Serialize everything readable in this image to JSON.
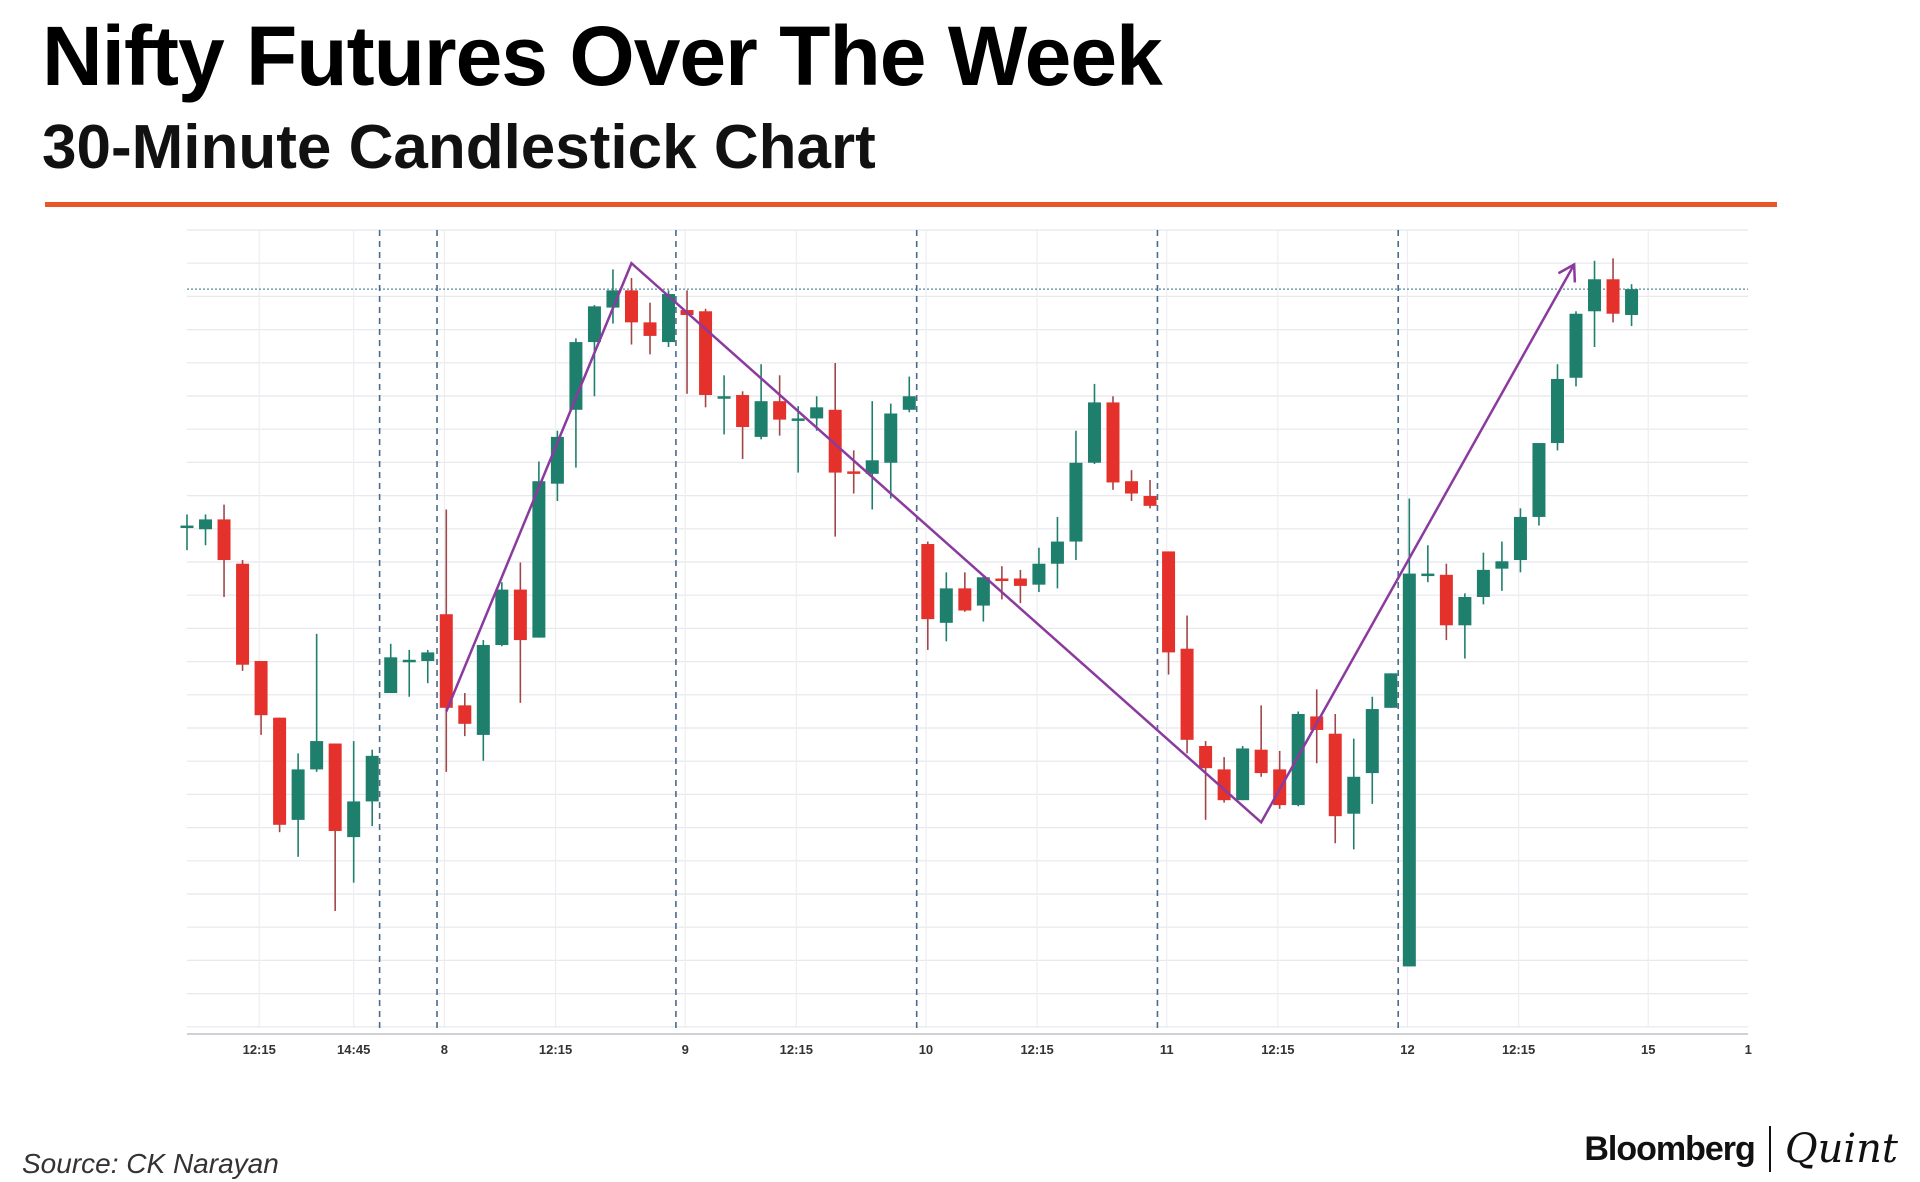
{
  "header": {
    "title": "Nifty Futures Over The Week",
    "subtitle": "30-Minute Candlestick Chart",
    "accent_color": "#E8572A"
  },
  "footer": {
    "source": "Source: CK Narayan",
    "logo_left": "Bloomberg",
    "logo_right": "Quint"
  },
  "chart_data": {
    "type": "candlestick",
    "title": "Nifty Futures Over The Week",
    "subtitle": "30-Minute Candlestick Chart",
    "interval": "30 minutes",
    "value_units": "relative price level (no y-axis labels shown)",
    "ylim": [
      0,
      648
    ],
    "grid": true,
    "colors": {
      "up": "#1F7F6D",
      "down": "#E5312B",
      "trend": "#8B3A9E",
      "separator": "#4A6A8A"
    },
    "ohlc_fields": [
      "open",
      "high",
      "low",
      "close"
    ],
    "candles": [
      [
        408,
        417,
        388,
        408
      ],
      [
        405,
        417,
        392,
        413
      ],
      [
        413,
        425,
        350,
        380
      ],
      [
        377,
        380,
        290,
        295
      ],
      [
        298,
        298,
        238,
        254
      ],
      [
        252,
        252,
        159,
        165
      ],
      [
        169,
        223,
        139,
        210
      ],
      [
        210,
        320,
        208,
        233
      ],
      [
        231,
        231,
        95,
        160
      ],
      [
        155,
        233,
        118,
        184
      ],
      [
        184,
        226,
        164,
        221
      ],
      [
        272,
        312,
        272,
        301
      ],
      [
        298,
        307,
        269,
        299
      ],
      [
        298,
        307,
        280,
        305
      ],
      [
        336,
        421,
        208,
        260
      ],
      [
        262,
        272,
        237,
        247
      ],
      [
        238,
        315,
        217,
        311
      ],
      [
        311,
        362,
        310,
        356
      ],
      [
        356,
        378,
        264,
        315
      ],
      [
        317,
        460,
        317,
        444
      ],
      [
        442,
        485,
        428,
        480
      ],
      [
        502,
        560,
        455,
        557
      ],
      [
        557,
        587,
        513,
        586
      ],
      [
        585,
        616,
        572,
        599
      ],
      [
        599,
        609,
        555,
        573
      ],
      [
        573,
        589,
        547,
        562
      ],
      [
        557,
        599,
        553,
        596
      ],
      [
        583,
        599,
        515,
        579
      ],
      [
        582,
        584,
        504,
        514
      ],
      [
        512,
        530,
        482,
        513
      ],
      [
        514,
        517,
        462,
        488
      ],
      [
        480,
        539,
        478,
        509
      ],
      [
        509,
        530,
        481,
        494
      ],
      [
        493,
        505,
        451,
        495
      ],
      [
        495,
        513,
        485,
        504
      ],
      [
        502,
        540,
        399,
        451
      ],
      [
        452,
        469,
        434,
        451
      ],
      [
        450,
        509,
        421,
        461
      ],
      [
        459,
        507,
        430,
        499
      ],
      [
        502,
        529,
        500,
        513
      ],
      [
        393,
        395,
        307,
        332
      ],
      [
        329,
        370,
        314,
        357
      ],
      [
        357,
        370,
        338,
        339
      ],
      [
        343,
        366,
        330,
        366
      ],
      [
        365,
        375,
        348,
        364
      ],
      [
        365,
        372,
        345,
        359
      ],
      [
        360,
        390,
        354,
        377
      ],
      [
        377,
        415,
        357,
        395
      ],
      [
        395,
        485,
        380,
        459
      ],
      [
        459,
        523,
        458,
        508
      ],
      [
        508,
        513,
        437,
        443
      ],
      [
        444,
        453,
        428,
        434
      ],
      [
        432,
        445,
        422,
        424
      ],
      [
        387,
        387,
        287,
        305
      ],
      [
        308,
        335,
        223,
        234
      ],
      [
        229,
        233,
        169,
        211
      ],
      [
        210,
        220,
        183,
        185
      ],
      [
        185,
        229,
        185,
        227
      ],
      [
        226,
        262,
        204,
        207
      ],
      [
        210,
        225,
        178,
        181
      ],
      [
        181,
        257,
        180,
        255
      ],
      [
        253,
        275,
        215,
        242
      ],
      [
        239,
        255,
        150,
        172
      ],
      [
        174,
        235,
        145,
        204
      ],
      [
        207,
        269,
        182,
        259
      ],
      [
        260,
        288,
        260,
        288
      ],
      [
        50,
        430,
        50,
        369
      ],
      [
        367,
        392,
        362,
        369
      ],
      [
        368,
        377,
        315,
        327
      ],
      [
        327,
        353,
        300,
        350
      ],
      [
        350,
        386,
        344,
        372
      ],
      [
        373,
        395,
        355,
        379
      ],
      [
        380,
        422,
        370,
        415
      ],
      [
        415,
        475,
        408,
        475
      ],
      [
        475,
        539,
        469,
        527
      ],
      [
        528,
        582,
        521,
        580
      ],
      [
        582,
        623,
        553,
        608
      ],
      [
        608,
        625,
        573,
        580
      ],
      [
        579,
        604,
        570,
        600
      ]
    ],
    "x_tick_labels": [
      {
        "label": "12:15",
        "slot": 3.9
      },
      {
        "label": "14:45",
        "slot": 9
      },
      {
        "label": "8",
        "slot": 13.9
      },
      {
        "label": "12:15",
        "slot": 19.9
      },
      {
        "label": "9",
        "slot": 26.9
      },
      {
        "label": "12:15",
        "slot": 32.9
      },
      {
        "label": "10",
        "slot": 39.9
      },
      {
        "label": "12:15",
        "slot": 45.9
      },
      {
        "label": "11",
        "slot": 52.9
      },
      {
        "label": "12:15",
        "slot": 58.9
      },
      {
        "label": "12",
        "slot": 65.9
      },
      {
        "label": "12:15",
        "slot": 71.9
      },
      {
        "label": "15",
        "slot": 78.9
      },
      {
        "label": "1",
        "slot": 84.3
      }
    ],
    "session_separators": [
      10.4,
      13.5,
      26.4,
      39.4,
      52.4,
      65.4
    ],
    "reference_level": 600,
    "trend_line": [
      [
        14,
        257
      ],
      [
        24,
        621
      ],
      [
        58,
        167
      ],
      [
        74.9,
        620
      ]
    ],
    "trend_line_arrow": true
  }
}
